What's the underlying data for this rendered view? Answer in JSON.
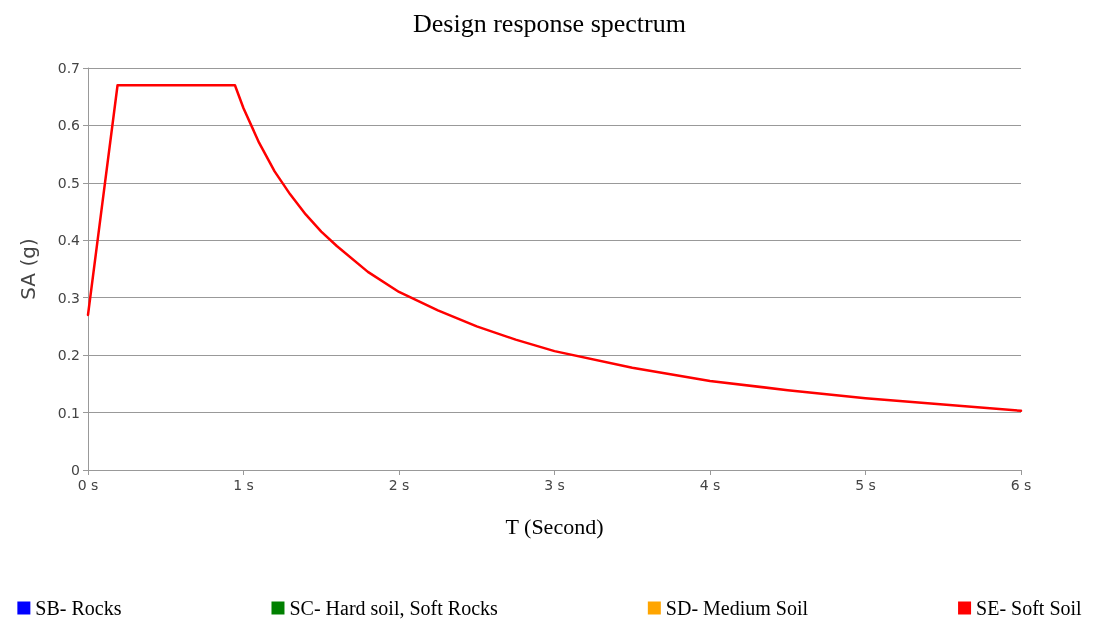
{
  "chart_data": {
    "type": "line",
    "title": "Design response spectrum",
    "xlabel": "T (Second)",
    "ylabel": "SA (g)",
    "x": [
      0,
      0.19,
      0.945,
      1,
      1.1,
      1.2,
      1.3,
      1.4,
      1.5,
      1.6,
      1.8,
      2,
      2.25,
      2.5,
      2.75,
      3,
      3.5,
      4,
      4.5,
      5,
      5.5,
      6
    ],
    "series": [
      {
        "name": "SB- Rocks",
        "color": "#0000ff",
        "values": [
          null,
          null,
          null,
          null,
          null,
          null,
          null,
          null,
          null,
          null,
          null,
          null,
          null,
          null,
          null,
          null,
          null,
          null,
          null,
          null,
          null,
          null
        ]
      },
      {
        "name": "SC- Hard soil, Soft Rocks",
        "color": "#008000",
        "values": [
          null,
          null,
          null,
          null,
          null,
          null,
          null,
          null,
          null,
          null,
          null,
          null,
          null,
          null,
          null,
          null,
          null,
          null,
          null,
          null,
          null,
          null
        ]
      },
      {
        "name": "SD- Medium Soil",
        "color": "#ffa500",
        "values": [
          null,
          null,
          null,
          null,
          null,
          null,
          null,
          null,
          null,
          null,
          null,
          null,
          null,
          null,
          null,
          null,
          null,
          null,
          null,
          null,
          null,
          null
        ]
      },
      {
        "name": "SE- Soft Soil",
        "color": "#ff0000",
        "values": [
          0.27,
          0.67,
          0.67,
          0.63,
          0.57,
          0.52,
          0.48,
          0.445,
          0.415,
          0.39,
          0.345,
          0.31,
          0.278,
          0.25,
          0.227,
          0.207,
          0.178,
          0.155,
          0.139,
          0.125,
          0.114,
          0.103
        ]
      }
    ],
    "xlim": [
      0,
      6
    ],
    "xticks": [
      {
        "value": 0,
        "label": "0 s"
      },
      {
        "value": 1,
        "label": "1 s"
      },
      {
        "value": 2,
        "label": "2 s"
      },
      {
        "value": 3,
        "label": "3 s"
      },
      {
        "value": 4,
        "label": "4 s"
      },
      {
        "value": 5,
        "label": "5 s"
      },
      {
        "value": 6,
        "label": "6 s"
      }
    ],
    "ylim": [
      0,
      0.7
    ],
    "yticks": [
      0,
      0.1,
      0.2,
      0.3,
      0.4,
      0.5,
      0.6,
      0.7
    ],
    "grid": "y",
    "legend": "bottom",
    "marker": "none",
    "line_style": "solid"
  }
}
